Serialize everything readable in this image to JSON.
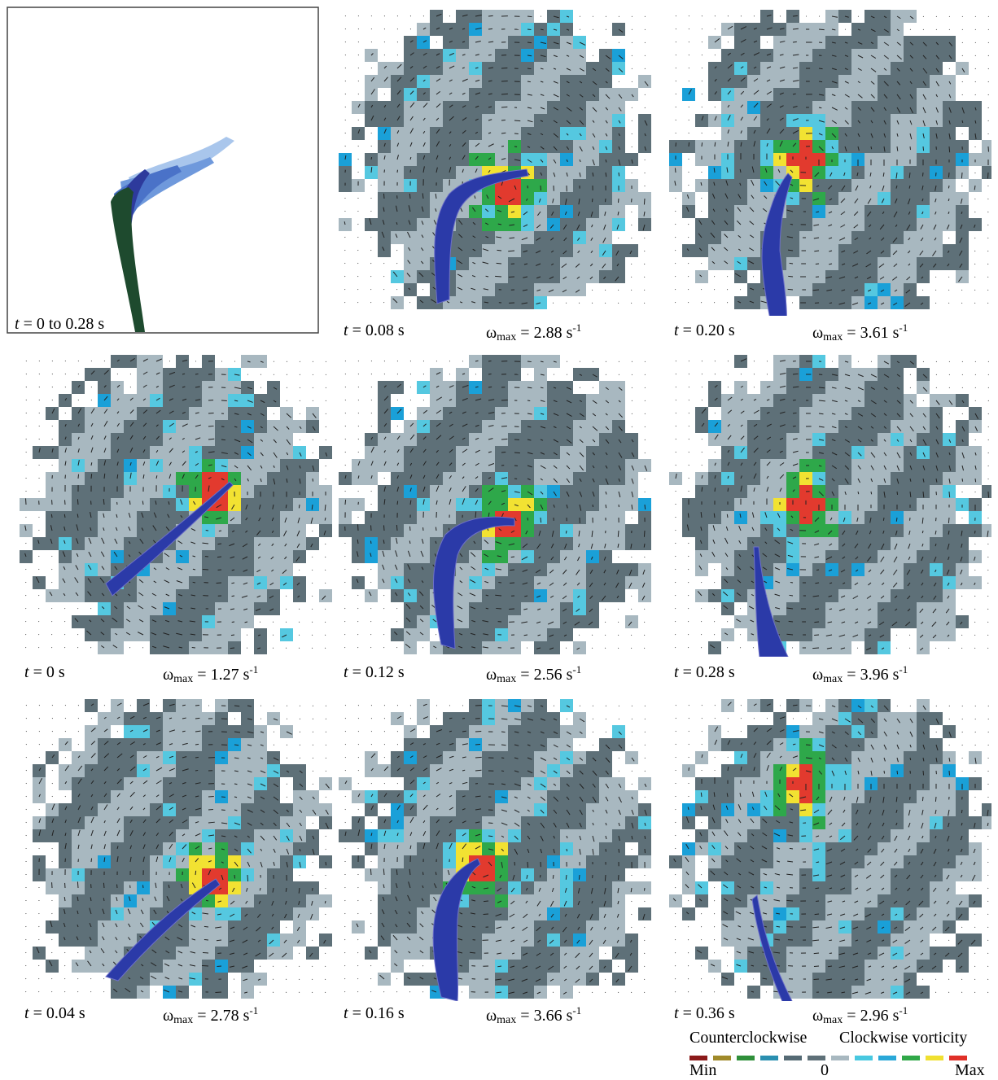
{
  "panels": [
    {
      "id": "overlay",
      "time": "0 to 0.28 s",
      "omega": ""
    },
    {
      "id": "p008",
      "time": "0.08 s",
      "omega": "2.88 s"
    },
    {
      "id": "p020",
      "time": "0.20 s",
      "omega": "3.61 s"
    },
    {
      "id": "p000",
      "time": "0 s",
      "omega": "1.27 s"
    },
    {
      "id": "p012",
      "time": "0.12 s",
      "omega": "2.56 s"
    },
    {
      "id": "p028",
      "time": "0.28 s",
      "omega": "3.96 s"
    },
    {
      "id": "p004",
      "time": "0.04 s",
      "omega": "2.78 s"
    },
    {
      "id": "p016",
      "time": "0.16 s",
      "omega": "3.66 s"
    },
    {
      "id": "p036",
      "time": "0.36 s",
      "omega": "2.96 s"
    }
  ],
  "labels": {
    "t": "t",
    "equals": "=",
    "omega_symbol": "ω",
    "omega_sub": "max",
    "inv_exp": "-1"
  },
  "legend": {
    "ccw_label": "Counterclockwise",
    "cw_label": "Clockwise vorticity",
    "min_label": "Min",
    "zero_label": "0",
    "max_label": "Max",
    "ccw_colors": [
      "#8b1a1a",
      "#a08a2a",
      "#2f8f3a",
      "#2a8fb0",
      "#556a74",
      "#5e7078"
    ],
    "cw_colors": [
      "#a8b8c0",
      "#48c8e0",
      "#2aa8d8",
      "#30a848",
      "#f0e030",
      "#e03028"
    ]
  },
  "colors": {
    "ccw_dark": "#5e7078",
    "cw_light": "#a8b8c0",
    "cyan": "#55c8e0",
    "blue": "#1aa0d8",
    "green": "#2ea84a",
    "yellow": "#f2e232",
    "red": "#e23a2e",
    "fish": "#2b3aa8"
  }
}
